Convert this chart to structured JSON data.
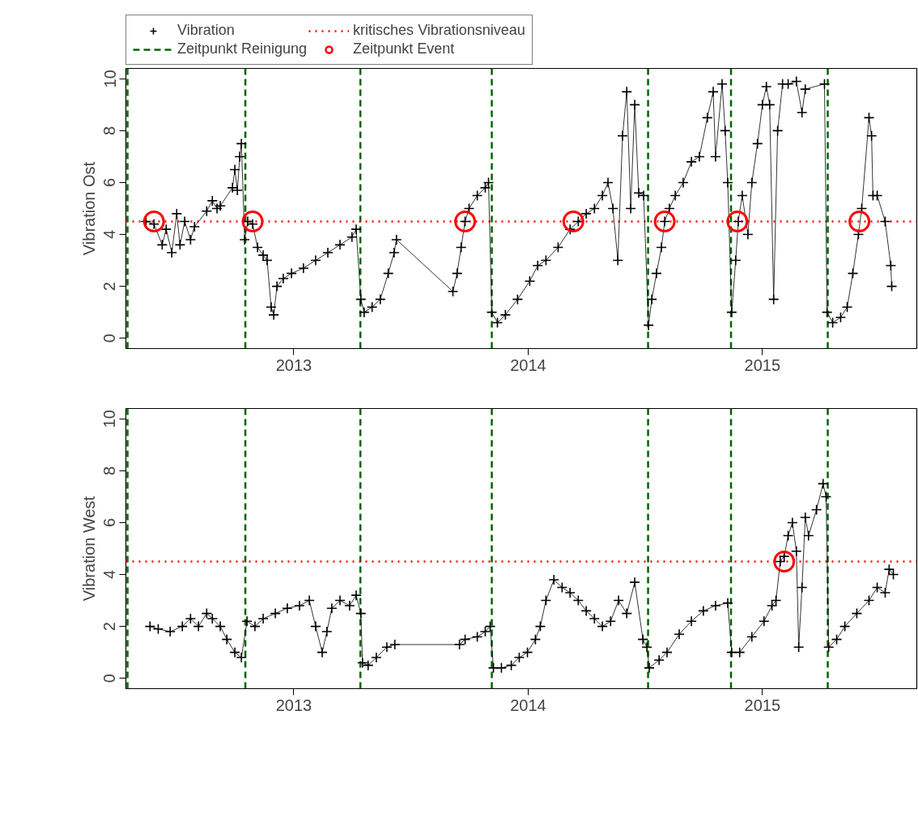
{
  "chart_data": [
    {
      "type": "line",
      "ylabel": "Vibration Ost",
      "xlim": [
        2012.283,
        2015.659
      ],
      "xticks": [
        2013,
        2014,
        2015
      ],
      "ylim": [
        -0.4,
        10.4
      ],
      "yticks": [
        0,
        2,
        4,
        6,
        8,
        10
      ],
      "grid": false,
      "legend": "top",
      "marker": "cross",
      "line_style": "solid",
      "series": [
        {
          "name": "Vibration",
          "color": "#000000",
          "x": [
            2012.369,
            2012.403,
            2012.438,
            2012.455,
            2012.479,
            2012.5,
            2012.514,
            2012.534,
            2012.559,
            2012.576,
            2012.628,
            2012.652,
            2012.672,
            2012.686,
            2012.738,
            2012.748,
            2012.759,
            2012.769,
            2012.776,
            2012.79,
            2012.803,
            2012.824,
            2012.845,
            2012.869,
            2012.886,
            2012.903,
            2012.914,
            2012.928,
            2012.955,
            2012.99,
            2013.041,
            2013.093,
            2013.145,
            2013.197,
            2013.248,
            2013.266,
            2013.286,
            2013.3,
            2013.334,
            2013.369,
            2013.403,
            2013.428,
            2013.438,
            2013.679,
            2013.697,
            2013.714,
            2013.731,
            2013.748,
            2013.783,
            2013.817,
            2013.831,
            2013.845,
            2013.869,
            2013.903,
            2013.955,
            2014.007,
            2014.041,
            2014.076,
            2014.128,
            2014.179,
            2014.214,
            2014.248,
            2014.283,
            2014.317,
            2014.341,
            2014.362,
            2014.383,
            2014.403,
            2014.421,
            2014.438,
            2014.455,
            2014.472,
            2014.493,
            2014.514,
            2014.528,
            2014.548,
            2014.569,
            2014.583,
            2014.603,
            2014.628,
            2014.662,
            2014.697,
            2014.731,
            2014.765,
            2014.79,
            2014.8,
            2014.828,
            2014.841,
            2014.852,
            2014.869,
            2014.886,
            2014.897,
            2014.914,
            2014.938,
            2014.955,
            2014.979,
            2015.0,
            2015.017,
            2015.031,
            2015.048,
            2015.065,
            2015.086,
            2015.11,
            2015.145,
            2015.169,
            2015.183,
            2015.265,
            2015.276,
            2015.3,
            2015.334,
            2015.362,
            2015.386,
            2015.41,
            2015.424,
            2015.455,
            2015.466,
            2015.472,
            2015.49,
            2015.524,
            2015.548,
            2015.552
          ],
          "values": [
            4.5,
            4.4,
            3.6,
            4.2,
            3.3,
            4.8,
            3.6,
            4.5,
            3.8,
            4.3,
            4.9,
            5.3,
            5.0,
            5.1,
            5.8,
            6.5,
            5.7,
            7.0,
            7.5,
            3.8,
            4.5,
            4.4,
            3.5,
            3.2,
            3.0,
            1.2,
            0.9,
            2.0,
            2.3,
            2.5,
            2.7,
            3.0,
            3.3,
            3.6,
            3.9,
            4.2,
            1.5,
            1.0,
            1.2,
            1.5,
            2.5,
            3.3,
            3.8,
            1.8,
            2.5,
            3.5,
            4.5,
            5.0,
            5.5,
            5.8,
            6.0,
            1.0,
            0.6,
            0.9,
            1.5,
            2.2,
            2.8,
            3.0,
            3.5,
            4.2,
            4.5,
            4.8,
            5.0,
            5.5,
            6.0,
            5.0,
            3.0,
            7.8,
            9.5,
            5.0,
            9.0,
            5.6,
            5.5,
            0.5,
            1.5,
            2.5,
            3.5,
            4.5,
            5.0,
            5.5,
            6.0,
            6.8,
            7.0,
            8.5,
            9.5,
            7.0,
            9.8,
            8.0,
            6.0,
            1.0,
            3.0,
            4.5,
            5.5,
            4.0,
            6.0,
            7.5,
            9.0,
            9.7,
            9.0,
            1.5,
            8.0,
            9.8,
            9.8,
            9.9,
            8.7,
            9.6,
            9.8,
            1.0,
            0.6,
            0.8,
            1.2,
            2.5,
            4.0,
            5.0,
            8.5,
            7.8,
            5.5,
            5.5,
            4.5,
            2.8,
            2.0
          ]
        },
        {
          "type": "scatter",
          "name": "Zeitpunkt Event",
          "color": "#ff0000",
          "marker": "circle",
          "x": [
            2012.403,
            2012.824,
            2013.731,
            2014.193,
            2014.583,
            2014.893,
            2015.414
          ],
          "values": [
            4.5,
            4.5,
            4.5,
            4.5,
            4.5,
            4.5,
            4.5
          ]
        }
      ],
      "ref_lines": [
        {
          "axis": "y",
          "value": 4.5,
          "label": "kritisches Vibrationsniveau",
          "color": "#ff0000",
          "line_style": "dotted"
        },
        {
          "axis": "x",
          "value": 2012.29,
          "label": "Zeitpunkt Reinigung",
          "color": "#006400",
          "line_style": "dashed"
        },
        {
          "axis": "x",
          "value": 2012.793,
          "color": "#006400",
          "line_style": "dashed"
        },
        {
          "axis": "x",
          "value": 2013.284,
          "color": "#006400",
          "line_style": "dashed"
        },
        {
          "axis": "x",
          "value": 2013.845,
          "color": "#006400",
          "line_style": "dashed"
        },
        {
          "axis": "x",
          "value": 2014.512,
          "color": "#006400",
          "line_style": "dashed"
        },
        {
          "axis": "x",
          "value": 2014.866,
          "color": "#006400",
          "line_style": "dashed"
        },
        {
          "axis": "x",
          "value": 2015.279,
          "color": "#006400",
          "line_style": "dashed"
        }
      ]
    },
    {
      "type": "line",
      "ylabel": "Vibration West",
      "xlim": [
        2012.283,
        2015.659
      ],
      "xticks": [
        2013,
        2014,
        2015
      ],
      "ylim": [
        -0.4,
        10.4
      ],
      "yticks": [
        0,
        2,
        4,
        6,
        8,
        10
      ],
      "grid": false,
      "marker": "cross",
      "line_style": "solid",
      "series": [
        {
          "color": "#000000",
          "x": [
            2012.386,
            2012.421,
            2012.472,
            2012.524,
            2012.559,
            2012.593,
            2012.628,
            2012.652,
            2012.686,
            2012.714,
            2012.748,
            2012.776,
            2012.8,
            2012.834,
            2012.869,
            2012.921,
            2012.972,
            2013.024,
            2013.066,
            2013.093,
            2013.121,
            2013.141,
            2013.162,
            2013.197,
            2013.238,
            2013.266,
            2013.286,
            2013.293,
            2013.317,
            2013.352,
            2013.397,
            2013.431,
            2013.707,
            2013.731,
            2013.783,
            2013.817,
            2013.838,
            2013.852,
            2013.886,
            2013.928,
            2013.962,
            2013.997,
            2014.031,
            2014.052,
            2014.076,
            2014.11,
            2014.145,
            2014.179,
            2014.214,
            2014.248,
            2014.283,
            2014.317,
            2014.352,
            2014.386,
            2014.421,
            2014.455,
            2014.49,
            2014.507,
            2014.517,
            2014.559,
            2014.593,
            2014.645,
            2014.697,
            2014.748,
            2014.8,
            2014.852,
            2014.869,
            2014.903,
            2014.955,
            2015.007,
            2015.041,
            2015.058,
            2015.076,
            2015.093,
            2015.11,
            2015.128,
            2015.145,
            2015.155,
            2015.169,
            2015.183,
            2015.197,
            2015.231,
            2015.259,
            2015.272,
            2015.283,
            2015.317,
            2015.352,
            2015.403,
            2015.455,
            2015.49,
            2015.524,
            2015.541,
            2015.559
          ],
          "values": [
            2.0,
            1.9,
            1.8,
            2.0,
            2.3,
            2.0,
            2.5,
            2.3,
            2.0,
            1.5,
            1.0,
            0.8,
            2.2,
            2.0,
            2.3,
            2.5,
            2.7,
            2.8,
            3.0,
            2.0,
            1.0,
            1.8,
            2.7,
            3.0,
            2.8,
            3.2,
            2.5,
            0.6,
            0.5,
            0.8,
            1.2,
            1.3,
            1.3,
            1.5,
            1.6,
            1.8,
            2.0,
            0.4,
            0.4,
            0.5,
            0.8,
            1.0,
            1.5,
            2.0,
            3.0,
            3.8,
            3.5,
            3.3,
            3.0,
            2.6,
            2.3,
            2.0,
            2.2,
            3.0,
            2.5,
            3.7,
            1.5,
            1.2,
            0.4,
            0.7,
            1.0,
            1.7,
            2.2,
            2.6,
            2.8,
            2.9,
            1.0,
            1.0,
            1.6,
            2.2,
            2.8,
            3.0,
            4.5,
            4.7,
            5.5,
            6.0,
            4.9,
            1.2,
            3.5,
            6.2,
            5.5,
            6.5,
            7.5,
            7.0,
            1.2,
            1.5,
            2.0,
            2.5,
            3.0,
            3.5,
            3.3,
            4.2,
            4.0
          ]
        },
        {
          "type": "scatter",
          "color": "#ff0000",
          "marker": "circle",
          "x": [
            2015.093
          ],
          "values": [
            4.5
          ]
        }
      ],
      "ref_lines": [
        {
          "axis": "y",
          "value": 4.5,
          "color": "#ff0000",
          "line_style": "dotted"
        },
        {
          "axis": "x",
          "value": 2012.29,
          "color": "#006400",
          "line_style": "dashed"
        },
        {
          "axis": "x",
          "value": 2012.793,
          "color": "#006400",
          "line_style": "dashed"
        },
        {
          "axis": "x",
          "value": 2013.284,
          "color": "#006400",
          "line_style": "dashed"
        },
        {
          "axis": "x",
          "value": 2013.845,
          "color": "#006400",
          "line_style": "dashed"
        },
        {
          "axis": "x",
          "value": 2014.512,
          "color": "#006400",
          "line_style": "dashed"
        },
        {
          "axis": "x",
          "value": 2014.866,
          "color": "#006400",
          "line_style": "dashed"
        },
        {
          "axis": "x",
          "value": 2015.279,
          "color": "#006400",
          "line_style": "dashed"
        }
      ]
    }
  ]
}
